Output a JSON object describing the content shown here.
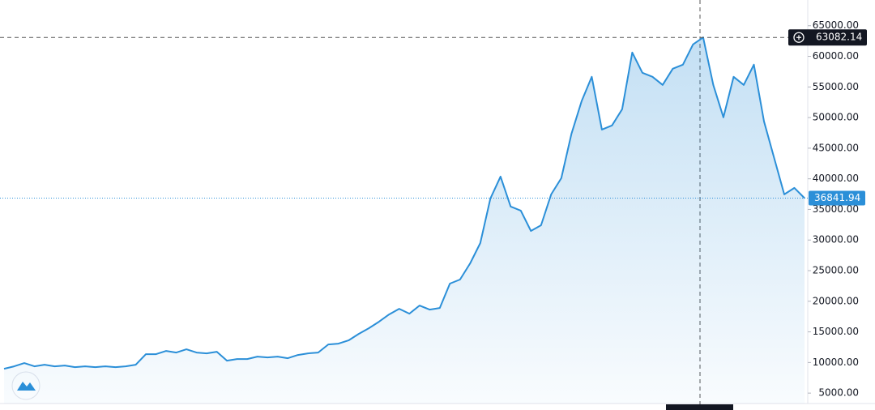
{
  "chart_data": {
    "type": "area",
    "values": [
      8974,
      9371,
      9901,
      9371,
      9636,
      9371,
      9503,
      9238,
      9371,
      9238,
      9371,
      9238,
      9371,
      9636,
      11358,
      11358,
      11887,
      11623,
      12152,
      11623,
      11490,
      11755,
      10298,
      10563,
      10563,
      10960,
      10828,
      10960,
      10695,
      11225,
      11490,
      11623,
      12947,
      13079,
      13609,
      14669,
      15596,
      16656,
      17848,
      18775,
      17980,
      19305,
      18642,
      18907,
      22881,
      23543,
      26192,
      29503,
      36788,
      40364,
      35464,
      34801,
      31490,
      32417,
      37450,
      40099,
      47384,
      52682,
      56656,
      48046,
      48709,
      51358,
      60629,
      57318,
      56656,
      55331,
      57980,
      58642,
      61954,
      63082,
      55331,
      50033,
      56656,
      55331,
      58642,
      49371,
      43411,
      37450,
      38510,
      36841.94
    ],
    "color": "#2b8fd8",
    "ylim": [
      3300,
      69200
    ],
    "yticks": [
      {
        "value": 5000,
        "label": "5000.00"
      },
      {
        "value": 10000,
        "label": "10000.00"
      },
      {
        "value": 15000,
        "label": "15000.00"
      },
      {
        "value": 20000,
        "label": "20000.00"
      },
      {
        "value": 25000,
        "label": "25000.00"
      },
      {
        "value": 30000,
        "label": "30000.00"
      },
      {
        "value": 35000,
        "label": "35000.00"
      },
      {
        "value": 40000,
        "label": "40000.00"
      },
      {
        "value": 45000,
        "label": "45000.00"
      },
      {
        "value": 50000,
        "label": "50000.00"
      },
      {
        "value": 55000,
        "label": "55000.00"
      },
      {
        "value": 60000,
        "label": "60000.00"
      },
      {
        "value": 65000,
        "label": "65000.00"
      }
    ],
    "crosshair_price": 63082.14,
    "last_price": 36841.94
  }
}
